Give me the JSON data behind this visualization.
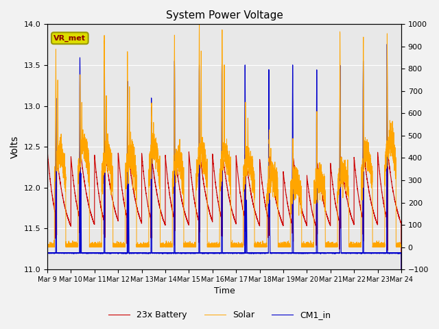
{
  "title": "System Power Voltage",
  "xlabel": "Time",
  "ylabel": "Volts",
  "xlim_days": [
    0,
    15
  ],
  "ylim_left": [
    11.0,
    14.0
  ],
  "ylim_right": [
    -100,
    1000
  ],
  "yticks_left": [
    11.0,
    11.5,
    12.0,
    12.5,
    13.0,
    13.5,
    14.0
  ],
  "yticks_right": [
    -100,
    0,
    100,
    200,
    300,
    400,
    500,
    600,
    700,
    800,
    900,
    1000
  ],
  "xtick_labels": [
    "Mar 9",
    "Mar 10",
    "Mar 11",
    "Mar 12",
    "Mar 13",
    "Mar 14",
    "Mar 15",
    "Mar 16",
    "Mar 17",
    "Mar 18",
    "Mar 19",
    "Mar 20",
    "Mar 21",
    "Mar 22",
    "Mar 23",
    "Mar 24"
  ],
  "legend_labels": [
    "23x Battery",
    "Solar",
    "CM1_in"
  ],
  "legend_colors": [
    "#cc0000",
    "#ffa500",
    "#0000cc"
  ],
  "plot_bg_color": "#e8e8e8",
  "fig_bg_color": "#f2f2f2",
  "grid_color": "#ffffff",
  "vr_met_text": "VR_met",
  "vr_met_fg": "#8B0000",
  "vr_met_bg": "#dddd00",
  "vr_met_edge": "#999900"
}
